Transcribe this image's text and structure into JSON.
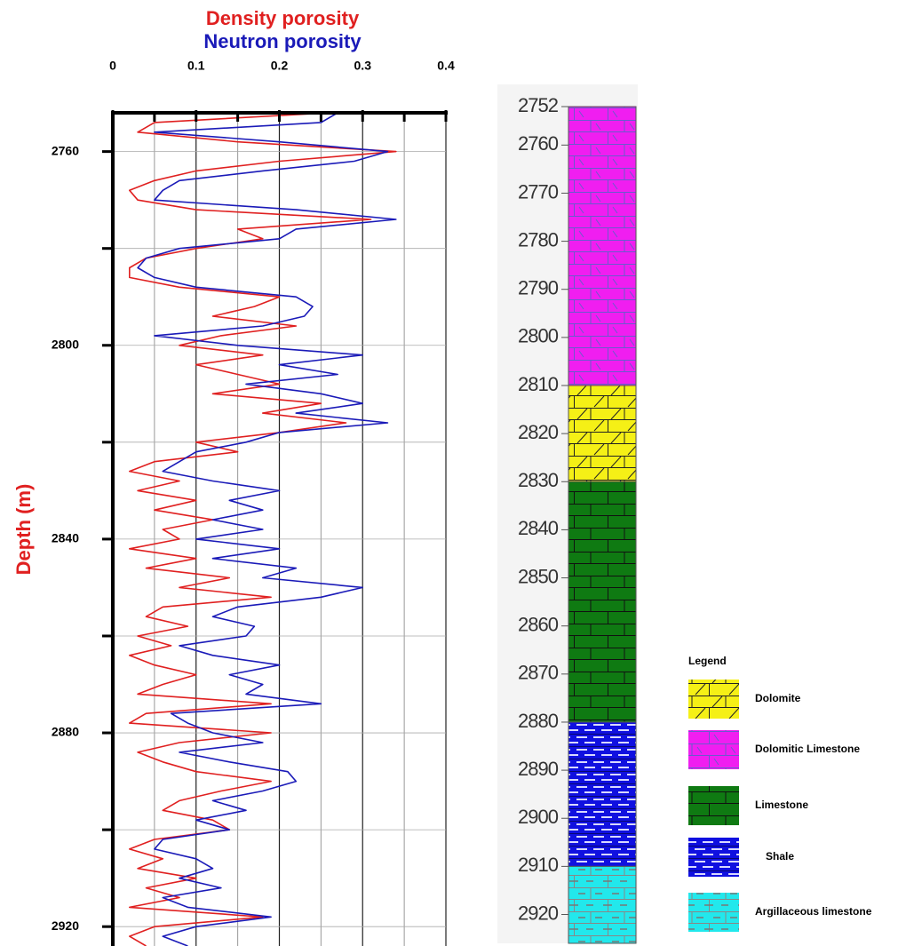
{
  "chart_data": [
    {
      "type": "line",
      "y_label": "Depth (m)",
      "xlim": [
        0,
        0.4
      ],
      "xticks": [
        0,
        0.1,
        0.2,
        0.3,
        0.4
      ],
      "x_minor_ticks": [
        0.05,
        0.15,
        0.25,
        0.35
      ],
      "ylim": [
        2752,
        2924
      ],
      "yticks": [
        2760,
        2800,
        2840,
        2880,
        2920
      ],
      "y_minor_ticks": [
        2780,
        2820,
        2860,
        2900
      ],
      "y_inverted": true,
      "grid": true,
      "y": [
        2752,
        2754,
        2756,
        2758,
        2760,
        2762,
        2764,
        2766,
        2768,
        2770,
        2772,
        2774,
        2776,
        2778,
        2780,
        2782,
        2784,
        2786,
        2788,
        2790,
        2792,
        2794,
        2796,
        2798,
        2800,
        2802,
        2804,
        2806,
        2808,
        2810,
        2812,
        2814,
        2816,
        2818,
        2820,
        2822,
        2824,
        2826,
        2828,
        2830,
        2832,
        2834,
        2836,
        2838,
        2840,
        2842,
        2844,
        2846,
        2848,
        2850,
        2852,
        2854,
        2856,
        2858,
        2860,
        2862,
        2864,
        2866,
        2868,
        2870,
        2872,
        2874,
        2876,
        2878,
        2880,
        2882,
        2884,
        2886,
        2888,
        2890,
        2892,
        2894,
        2896,
        2898,
        2900,
        2902,
        2904,
        2906,
        2908,
        2910,
        2912,
        2914,
        2916,
        2918,
        2920,
        2922,
        2924
      ],
      "series": [
        {
          "name": "Density porosity",
          "color": "#e02020",
          "values": [
            0.26,
            0.05,
            0.03,
            0.15,
            0.34,
            0.2,
            0.1,
            0.05,
            0.02,
            0.03,
            0.1,
            0.31,
            0.15,
            0.18,
            0.1,
            0.04,
            0.02,
            0.02,
            0.08,
            0.2,
            0.17,
            0.12,
            0.22,
            0.13,
            0.08,
            0.18,
            0.1,
            0.15,
            0.2,
            0.12,
            0.25,
            0.18,
            0.28,
            0.2,
            0.1,
            0.15,
            0.05,
            0.02,
            0.08,
            0.03,
            0.1,
            0.05,
            0.12,
            0.06,
            0.08,
            0.02,
            0.1,
            0.04,
            0.14,
            0.08,
            0.19,
            0.06,
            0.04,
            0.09,
            0.03,
            0.07,
            0.02,
            0.05,
            0.1,
            0.06,
            0.03,
            0.19,
            0.04,
            0.02,
            0.19,
            0.08,
            0.03,
            0.06,
            0.1,
            0.19,
            0.13,
            0.08,
            0.06,
            0.12,
            0.14,
            0.05,
            0.02,
            0.06,
            0.03,
            0.1,
            0.04,
            0.08,
            0.02,
            0.18,
            0.05,
            0.02,
            0.04
          ]
        },
        {
          "name": "Neutron porosity",
          "color": "#1a1ab8",
          "values": [
            0.27,
            0.25,
            0.05,
            0.2,
            0.33,
            0.29,
            0.18,
            0.08,
            0.06,
            0.05,
            0.22,
            0.34,
            0.22,
            0.2,
            0.08,
            0.04,
            0.03,
            0.05,
            0.1,
            0.22,
            0.24,
            0.23,
            0.18,
            0.05,
            0.15,
            0.3,
            0.2,
            0.27,
            0.16,
            0.25,
            0.3,
            0.22,
            0.33,
            0.2,
            0.16,
            0.1,
            0.08,
            0.06,
            0.12,
            0.2,
            0.14,
            0.18,
            0.12,
            0.18,
            0.1,
            0.2,
            0.12,
            0.22,
            0.18,
            0.3,
            0.25,
            0.15,
            0.12,
            0.17,
            0.16,
            0.08,
            0.12,
            0.2,
            0.14,
            0.18,
            0.16,
            0.25,
            0.07,
            0.09,
            0.12,
            0.18,
            0.08,
            0.14,
            0.21,
            0.22,
            0.18,
            0.12,
            0.16,
            0.1,
            0.14,
            0.06,
            0.05,
            0.1,
            0.12,
            0.08,
            0.13,
            0.06,
            0.09,
            0.19,
            0.1,
            0.06,
            0.09
          ]
        }
      ]
    },
    {
      "type": "lithology",
      "ylim": [
        2752,
        2926
      ],
      "y_inverted": true,
      "yticks": [
        2752,
        2760,
        2770,
        2780,
        2790,
        2800,
        2810,
        2820,
        2830,
        2840,
        2850,
        2860,
        2870,
        2880,
        2890,
        2900,
        2910,
        2920
      ],
      "legend_title": "Legend",
      "series": [
        {
          "name": "Dolomite",
          "color": "#f5f016",
          "top": 2810,
          "base": 2830
        },
        {
          "name": "Dolomitic Limestone",
          "color": "#f01ef0",
          "top": 2752,
          "base": 2810
        },
        {
          "name": "Limestone",
          "color": "#0f7a12",
          "top": 2830,
          "base": 2880
        },
        {
          "name": "Shale",
          "color": "#1010e0",
          "top": 2880,
          "base": 2910
        },
        {
          "name": "Argillaceous limestone",
          "color": "#22e8ec",
          "top": 2910,
          "base": 2926
        }
      ]
    }
  ]
}
